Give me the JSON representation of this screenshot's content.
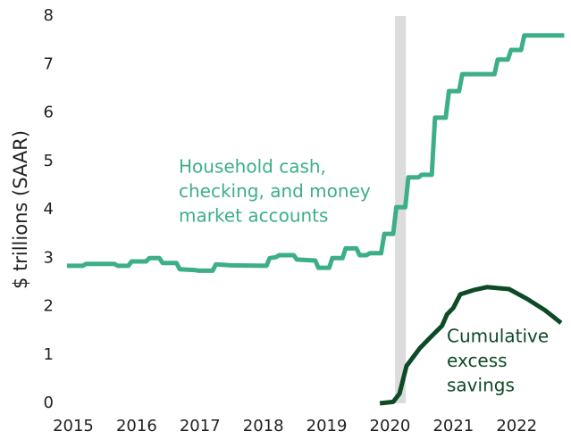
{
  "chart_data": {
    "type": "line",
    "y_label": "$ trillions (SAAR)",
    "xlim": [
      2014.9,
      2022.85
    ],
    "xticks": [
      2015,
      2016,
      2017,
      2018,
      2019,
      2020,
      2021,
      2022
    ],
    "ylim": [
      0,
      8
    ],
    "yticks": [
      0,
      1,
      2,
      3,
      4,
      5,
      6,
      7,
      8
    ],
    "grid": false,
    "shading": {
      "x": [
        2020.08,
        2020.25
      ],
      "color": "#dcdcdc"
    },
    "series": [
      {
        "name": [
          "Household cash,",
          "checking, and money",
          "market accounts"
        ],
        "color": "#3daf87",
        "x": [
          2014.9,
          2015.15,
          2015.2,
          2015.65,
          2015.7,
          2015.87,
          2015.92,
          2016.15,
          2016.2,
          2016.36,
          2016.41,
          2016.63,
          2016.68,
          2016.93,
          2016.98,
          2017.2,
          2017.25,
          2017.5,
          2018.05,
          2018.1,
          2018.2,
          2018.25,
          2018.48,
          2018.53,
          2018.82,
          2018.87,
          2019.04,
          2019.09,
          2019.25,
          2019.3,
          2019.47,
          2019.52,
          2019.63,
          2019.68,
          2019.86,
          2019.91,
          2020.05,
          2020.1,
          2020.24,
          2020.29,
          2020.45,
          2020.5,
          2020.66,
          2020.71,
          2020.88,
          2020.93,
          2021.09,
          2021.14,
          2021.65,
          2021.7,
          2021.86,
          2021.91,
          2022.07,
          2022.12,
          2022.75
        ],
        "values": [
          2.84,
          2.84,
          2.88,
          2.88,
          2.84,
          2.84,
          2.93,
          2.93,
          3.0,
          3.0,
          2.9,
          2.9,
          2.77,
          2.75,
          2.74,
          2.74,
          2.87,
          2.85,
          2.84,
          3.0,
          3.02,
          3.06,
          3.06,
          2.97,
          2.95,
          2.8,
          2.8,
          3.0,
          3.0,
          3.2,
          3.2,
          3.06,
          3.06,
          3.1,
          3.1,
          3.5,
          3.5,
          4.05,
          4.05,
          4.67,
          4.67,
          4.72,
          4.72,
          5.9,
          5.9,
          6.45,
          6.45,
          6.8,
          6.8,
          7.1,
          7.1,
          7.3,
          7.3,
          7.6,
          7.6
        ]
      },
      {
        "name": [
          "Cumulative",
          "excess",
          "savings"
        ],
        "color": "#0d4a26",
        "x": [
          2019.84,
          2020.05,
          2020.15,
          2020.26,
          2020.47,
          2020.68,
          2020.82,
          2020.9,
          2021.0,
          2021.11,
          2021.32,
          2021.53,
          2021.88,
          2022.16,
          2022.45,
          2022.7
        ],
        "values": [
          0,
          0.03,
          0.2,
          0.77,
          1.14,
          1.42,
          1.6,
          1.84,
          1.97,
          2.25,
          2.34,
          2.4,
          2.36,
          2.16,
          1.92,
          1.66
        ]
      }
    ]
  }
}
